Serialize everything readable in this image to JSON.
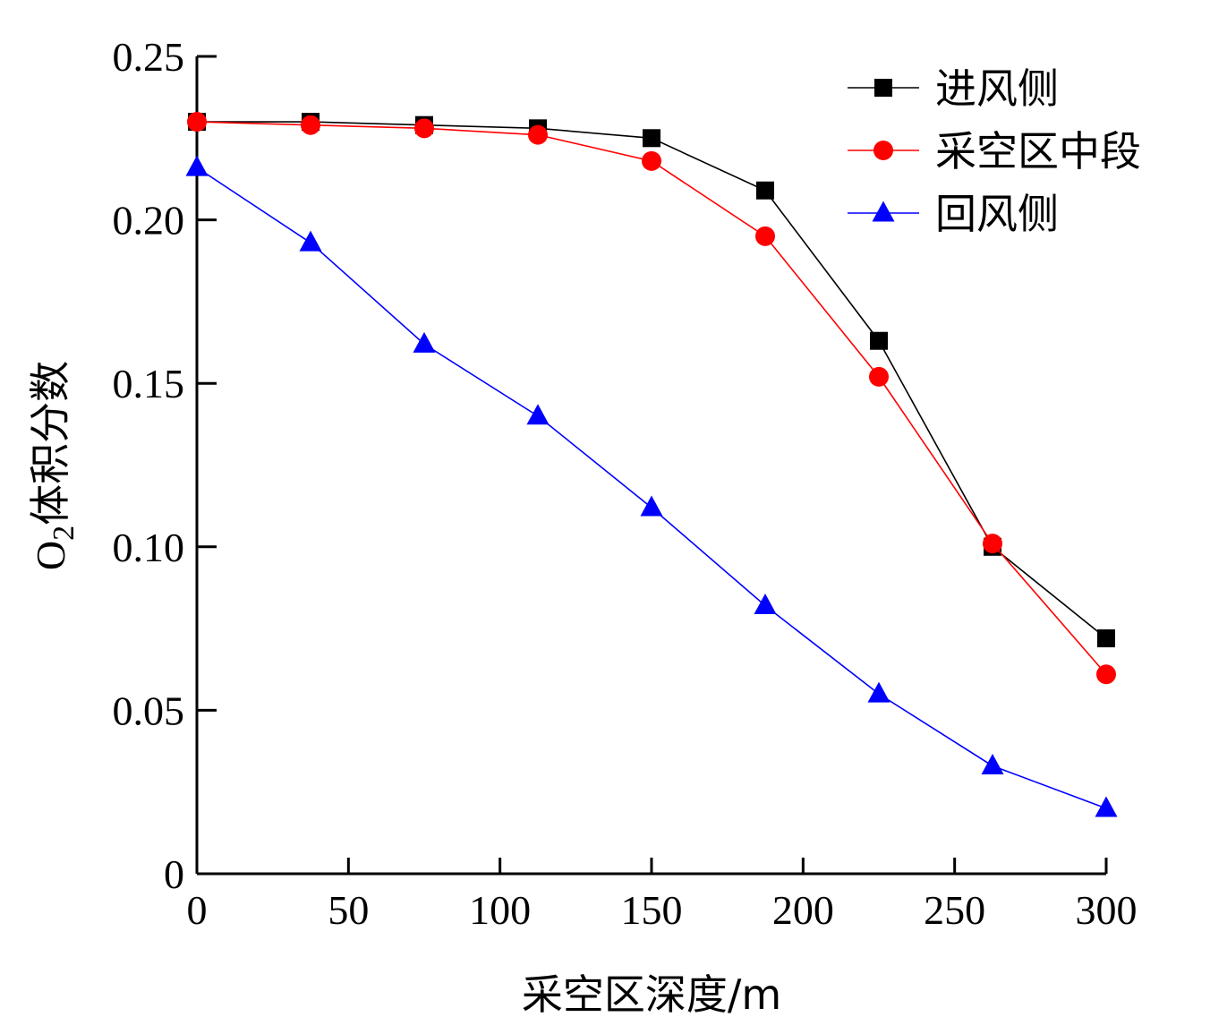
{
  "chart_data": {
    "type": "line",
    "xlabel": "采空区深度/m",
    "ylabel_main": "O",
    "ylabel_sub": "2",
    "ylabel_rest": "体积分数",
    "xlim": [
      0,
      300
    ],
    "ylim": [
      0,
      0.25
    ],
    "xticks": [
      "0",
      "50",
      "100",
      "150",
      "200",
      "250",
      "300"
    ],
    "yticks": [
      "0",
      "0.05",
      "0.10",
      "0.15",
      "0.20",
      "0.25"
    ],
    "legend_position": "top-right",
    "grid": false,
    "series": [
      {
        "name": "进风侧",
        "color": "#000000",
        "marker": "square",
        "x": [
          0,
          37.5,
          75,
          112.5,
          150,
          187.5,
          225,
          262.5,
          300
        ],
        "y": [
          0.23,
          0.23,
          0.229,
          0.228,
          0.225,
          0.209,
          0.163,
          0.1,
          0.072
        ]
      },
      {
        "name": "采空区中段",
        "color": "#ff0000",
        "marker": "circle",
        "x": [
          0,
          37.5,
          75,
          112.5,
          150,
          187.5,
          225,
          262.5,
          300
        ],
        "y": [
          0.23,
          0.229,
          0.228,
          0.226,
          0.218,
          0.195,
          0.152,
          0.101,
          0.061
        ]
      },
      {
        "name": "回风侧",
        "color": "#0000ff",
        "marker": "triangle",
        "x": [
          0,
          37.5,
          75,
          112.5,
          150,
          187.5,
          225,
          262.5,
          300
        ],
        "y": [
          0.216,
          0.193,
          0.162,
          0.14,
          0.112,
          0.082,
          0.055,
          0.033,
          0.02
        ]
      }
    ]
  }
}
